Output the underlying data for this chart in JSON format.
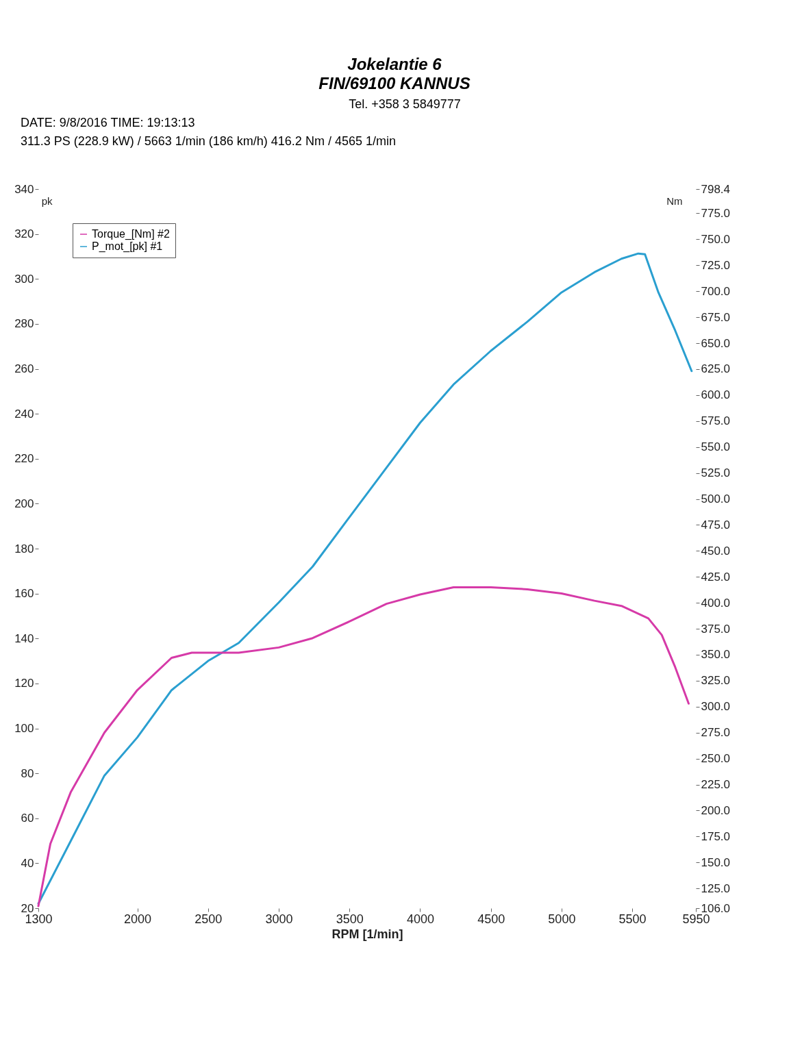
{
  "chart_data": {
    "type": "line",
    "title": "Jokelantie 6",
    "subtitle": "FIN/69100 KANNUS",
    "annotations": [
      "Tel. +358 3 5849777",
      "DATE: 9/8/2016  TIME: 19:13:13",
      "311.3 PS  (228.9 kW) / 5663 1/min (186 km/h)    416.2 Nm / 4565 1/min"
    ],
    "xlabel": "RPM  [1/min]",
    "ylabel": "pk",
    "y2label": "Nm",
    "xlim": [
      1300,
      5950
    ],
    "xticks": [
      1300,
      2000,
      2500,
      3000,
      3500,
      4000,
      4500,
      5000,
      5500,
      5950
    ],
    "ylim": [
      20,
      340
    ],
    "yticks": [
      20,
      40,
      60,
      80,
      100,
      120,
      140,
      160,
      180,
      200,
      220,
      240,
      260,
      280,
      300,
      320,
      340
    ],
    "y2lim": [
      106,
      798.4
    ],
    "y2ticks": [
      {
        "value": 106,
        "label": "106.0"
      },
      {
        "value": 125,
        "label": "125.0"
      },
      {
        "value": 150,
        "label": "150.0"
      },
      {
        "value": 175,
        "label": "175.0"
      },
      {
        "value": 200,
        "label": "200.0"
      },
      {
        "value": 225,
        "label": "225.0"
      },
      {
        "value": 250,
        "label": "250.0"
      },
      {
        "value": 275,
        "label": "275.0"
      },
      {
        "value": 300,
        "label": "300.0"
      },
      {
        "value": 325,
        "label": "325.0"
      },
      {
        "value": 350,
        "label": "350.0"
      },
      {
        "value": 375,
        "label": "375.0"
      },
      {
        "value": 400,
        "label": "400.0"
      },
      {
        "value": 425,
        "label": "425.0"
      },
      {
        "value": 450,
        "label": "450.0"
      },
      {
        "value": 475,
        "label": "475.0"
      },
      {
        "value": 500,
        "label": "500.0"
      },
      {
        "value": 525,
        "label": "525.0"
      },
      {
        "value": 550,
        "label": "550.0"
      },
      {
        "value": 575,
        "label": "575.0"
      },
      {
        "value": 600,
        "label": "600.0"
      },
      {
        "value": 625,
        "label": "625.0"
      },
      {
        "value": 650,
        "label": "650.0"
      },
      {
        "value": 675,
        "label": "675.0"
      },
      {
        "value": 700,
        "label": "700.0"
      },
      {
        "value": 725,
        "label": "725.0"
      },
      {
        "value": 750,
        "label": "750.0"
      },
      {
        "value": 775,
        "label": "775.0"
      },
      798.4
    ],
    "legend": "top left",
    "line_style": "solid",
    "marker": "none",
    "series": [
      {
        "name": "Torque_[Nm] #2",
        "color": "#d63aa8",
        "axis": "y2",
        "x": [
          1300,
          1385,
          1530,
          1767,
          2000,
          2242,
          2385,
          2717,
          3000,
          3240,
          3500,
          3762,
          4000,
          4236,
          4500,
          4759,
          5000,
          5233,
          5424,
          5614,
          5709,
          5804,
          5899
        ],
        "values": [
          108,
          168,
          218,
          275,
          316,
          347,
          352,
          352,
          357,
          366,
          382,
          399,
          408,
          415,
          415,
          413,
          409,
          402,
          397,
          385,
          369,
          338,
          303
        ]
      },
      {
        "name": "P_mot_[pk] #1",
        "color": "#2a9fd0",
        "x": [
          1300,
          1530,
          1767,
          2000,
          2242,
          2500,
          2717,
          3000,
          3240,
          3500,
          3762,
          4000,
          4236,
          4500,
          4759,
          5000,
          5233,
          5424,
          5543,
          5590,
          5685,
          5804,
          5920
        ],
        "values": [
          22,
          50,
          79,
          96,
          117,
          130,
          138,
          156,
          172,
          194,
          216,
          236,
          253,
          268,
          281,
          294,
          303,
          309,
          311.3,
          311,
          294,
          277,
          259
        ]
      }
    ]
  }
}
